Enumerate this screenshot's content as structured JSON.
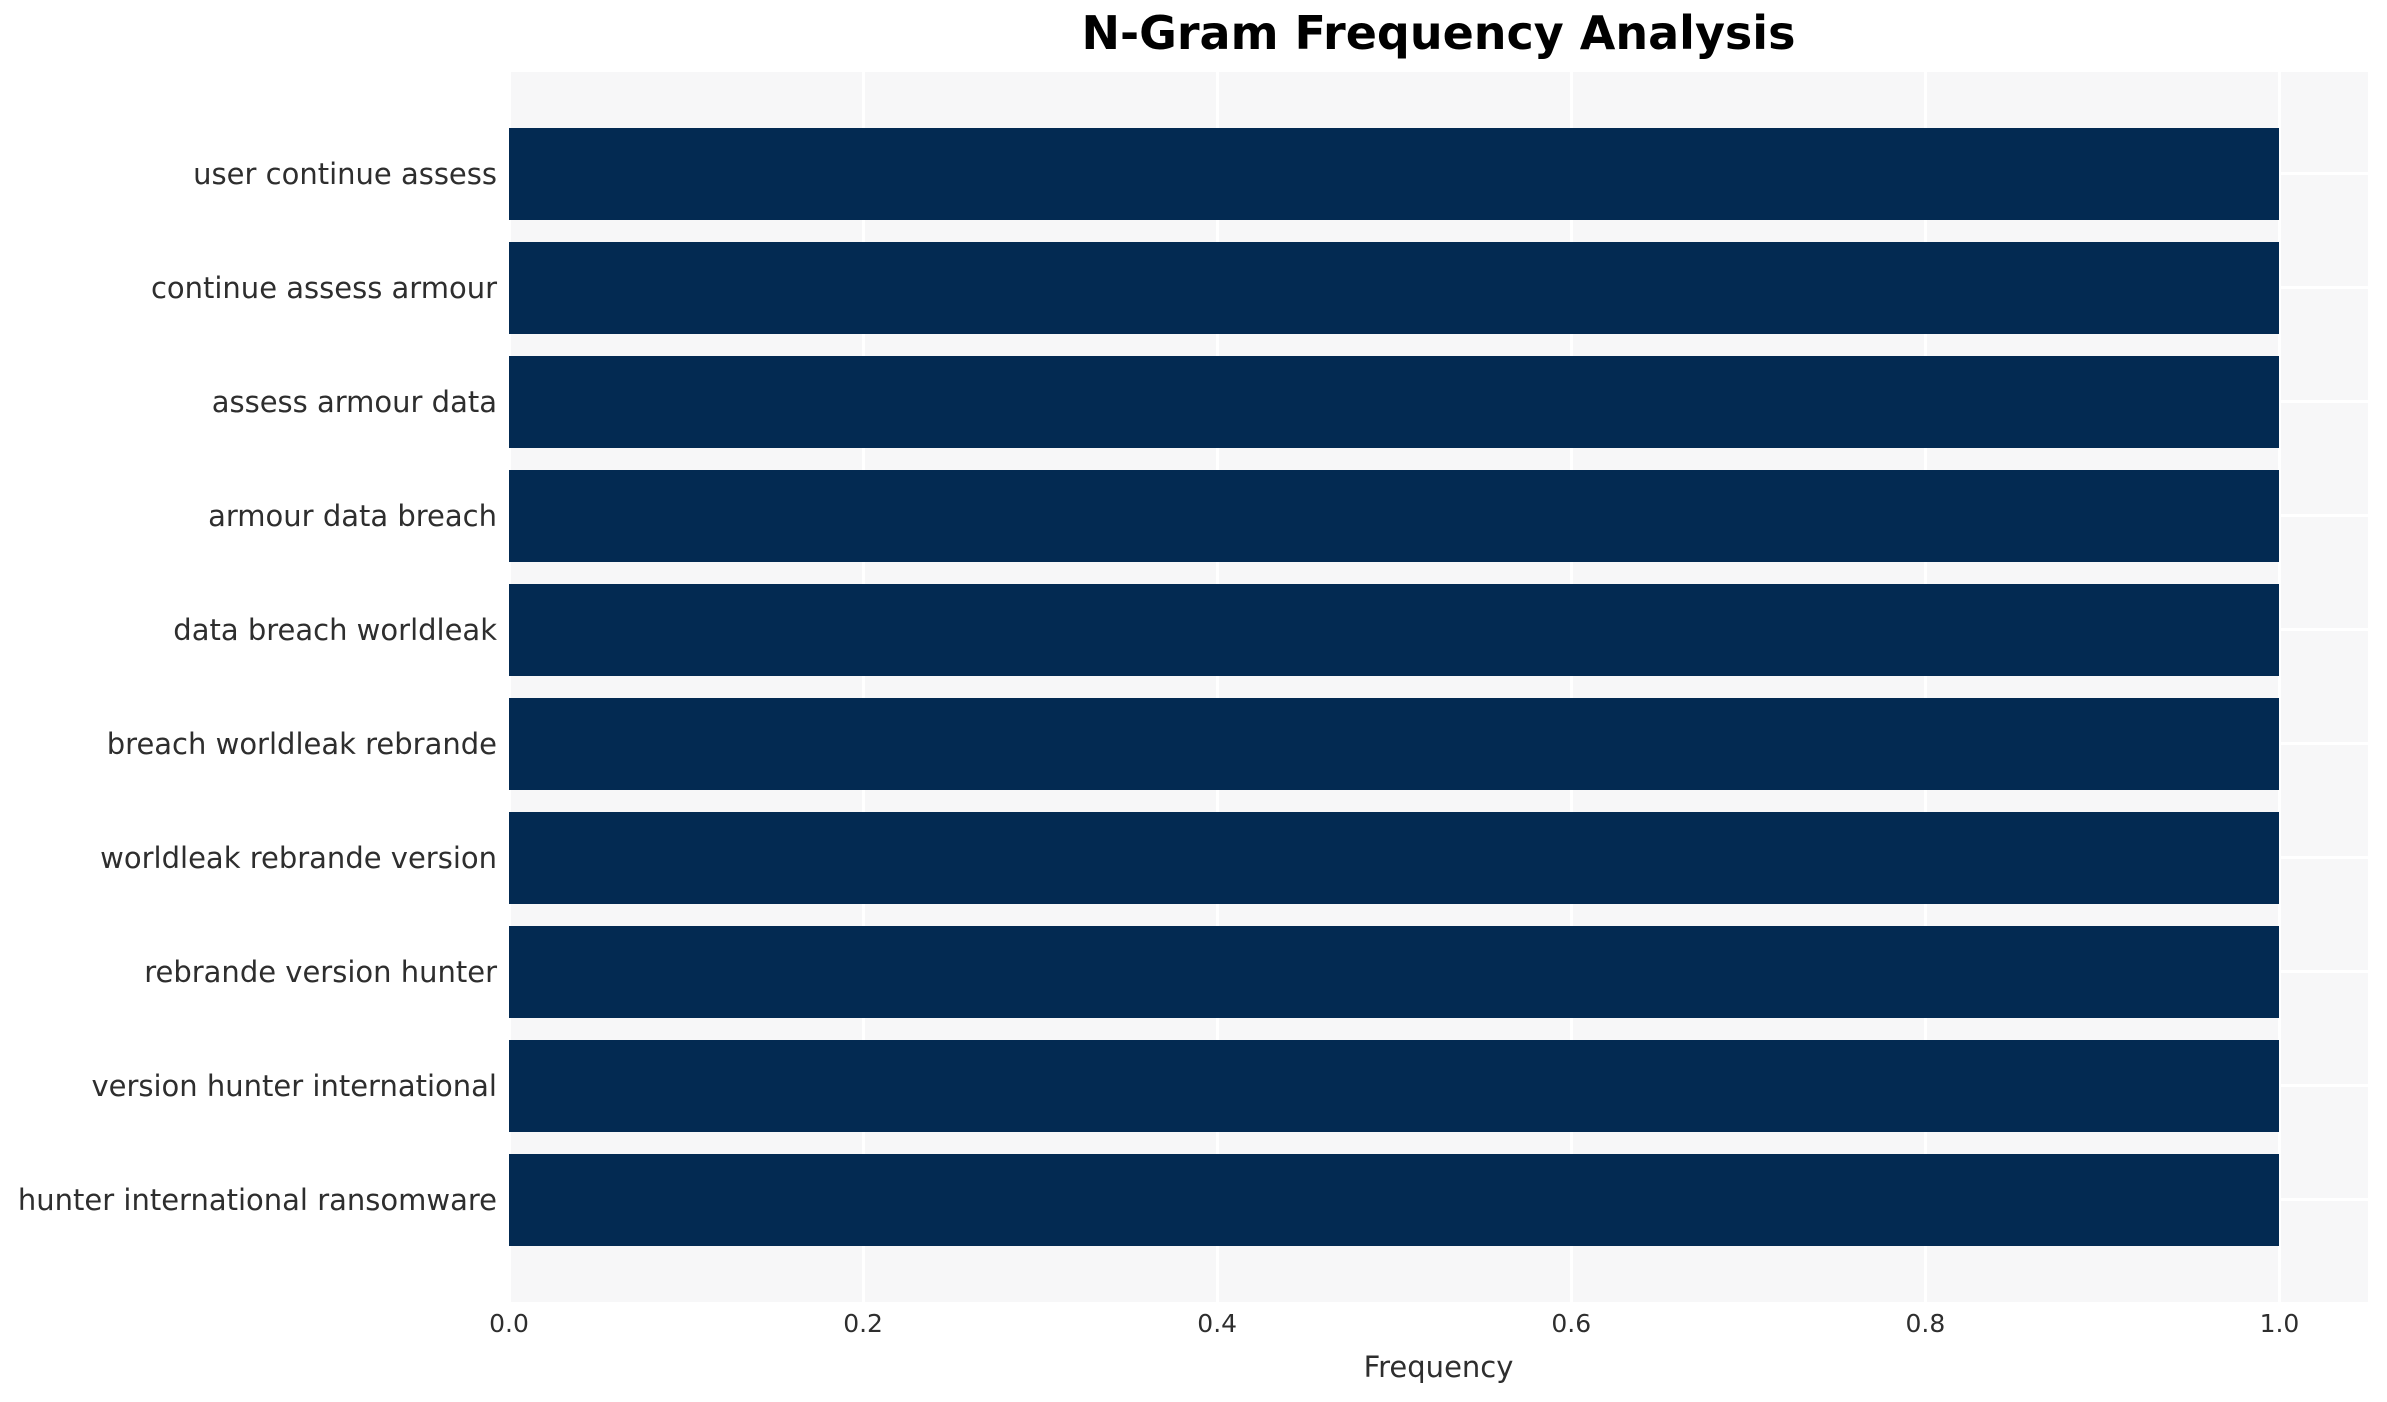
{
  "chart_data": {
    "type": "bar",
    "orientation": "horizontal",
    "title": "N-Gram Frequency Analysis",
    "xlabel": "Frequency",
    "ylabel": "",
    "categories": [
      "user continue assess",
      "continue assess armour",
      "assess armour data",
      "armour data breach",
      "data breach worldleak",
      "breach worldleak rebrande",
      "worldleak rebrande version",
      "rebrande version hunter",
      "version hunter international",
      "hunter international ransomware"
    ],
    "values": [
      1.0,
      1.0,
      1.0,
      1.0,
      1.0,
      1.0,
      1.0,
      1.0,
      1.0,
      1.0
    ],
    "xlim": [
      0,
      1.05
    ],
    "xticks": {
      "values": [
        0.0,
        0.2,
        0.4,
        0.6,
        0.8,
        1.0
      ],
      "labels": [
        "0.0",
        "0.2",
        "0.4",
        "0.6",
        "0.8",
        "1.0"
      ]
    },
    "grid": "on",
    "legend": "none",
    "bar_color": "#032a52",
    "plot_background": "#f7f7f8",
    "grid_color": "#ffffff",
    "title_color": "#000000",
    "label_color": "#2e2e2e"
  }
}
